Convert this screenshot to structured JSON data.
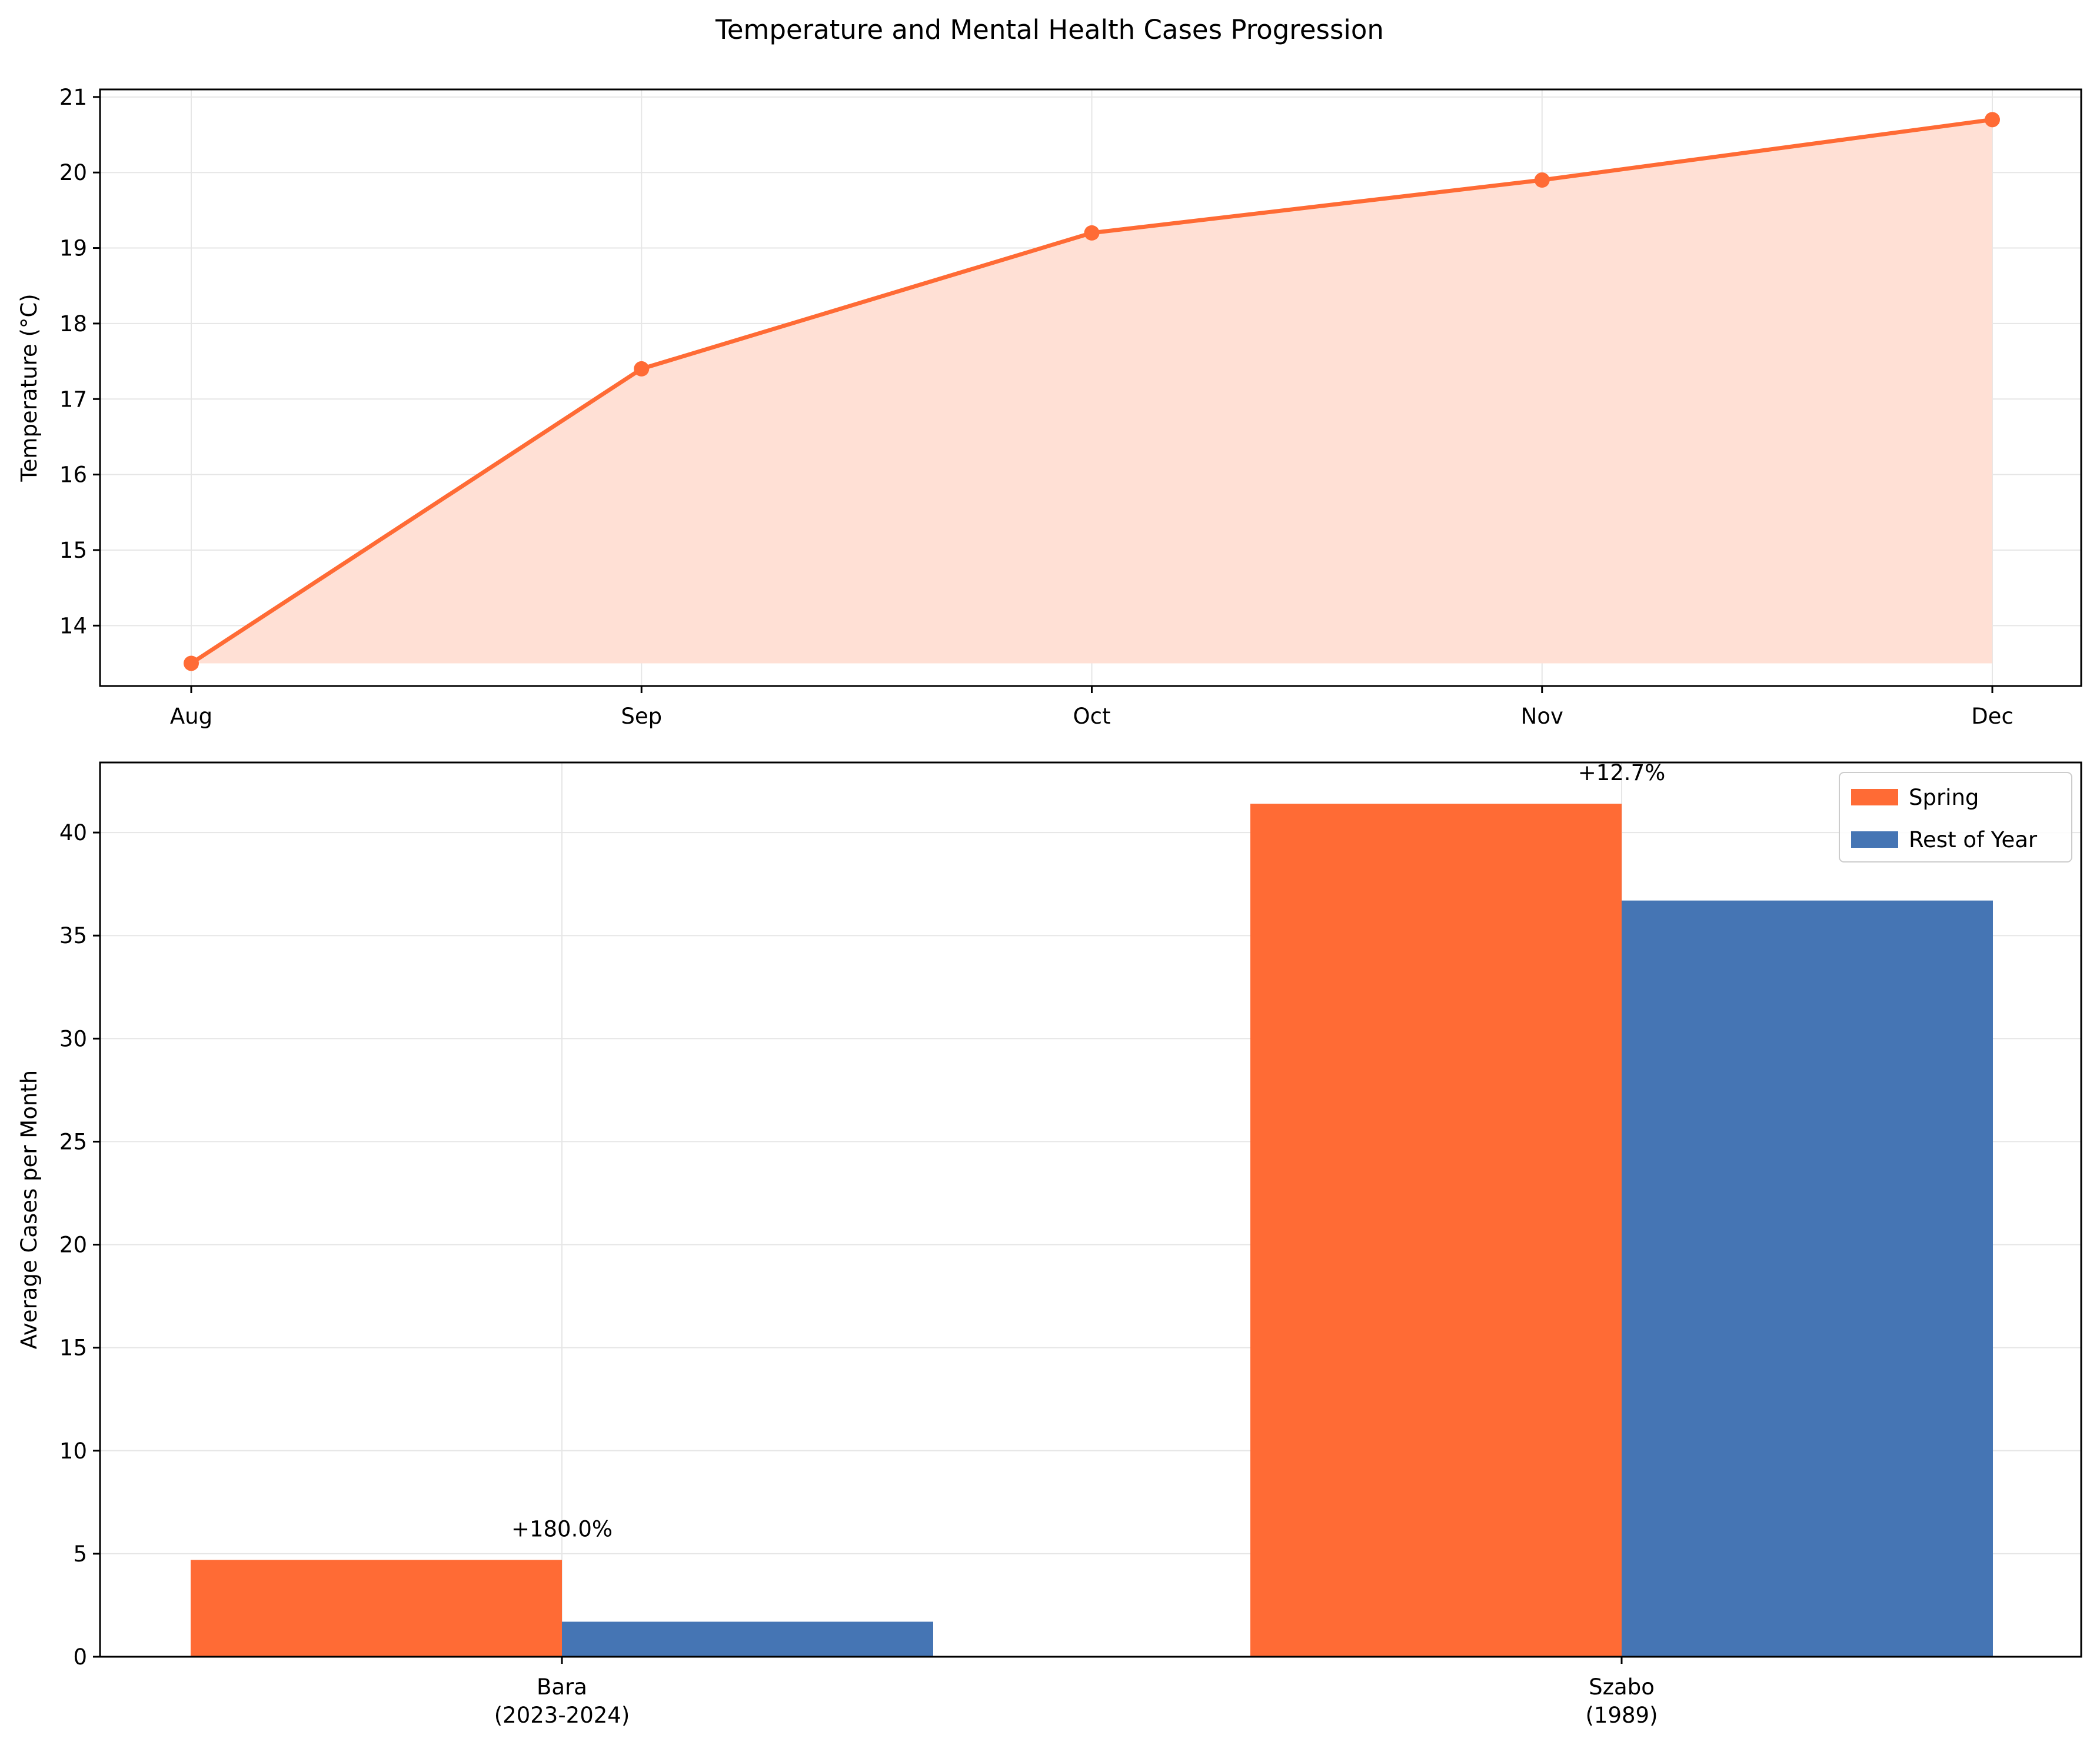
{
  "figure": {
    "title": "Temperature and Mental Health Cases Progression"
  },
  "colors": {
    "orange": "#FF6B35",
    "orange_fill": "#FFE0D5",
    "blue": "#4575B4",
    "grid": "#E6E6E6",
    "axis": "#000000"
  },
  "chart_data": [
    {
      "type": "line",
      "title": "",
      "xlabel": "",
      "ylabel": "Temperature (°C)",
      "categories": [
        "Aug",
        "Sep",
        "Oct",
        "Nov",
        "Dec"
      ],
      "series": [
        {
          "values": [
            13.5,
            17.4,
            19.2,
            19.9,
            20.7
          ],
          "color": "#FF6B35",
          "marker": "circle",
          "filled_area": true
        }
      ],
      "ylim": [
        13.2,
        21.1
      ],
      "yticks": [
        14,
        15,
        16,
        17,
        18,
        19,
        20,
        21
      ],
      "grid": true
    },
    {
      "type": "bar",
      "title": "",
      "xlabel": "",
      "ylabel": "Average Cases per Month",
      "categories": [
        {
          "name": "Bara",
          "sub": "(2023-2024)"
        },
        {
          "name": "Szabo",
          "sub": "(1989)"
        }
      ],
      "series": [
        {
          "name": "Spring",
          "values": [
            4.7,
            41.4
          ],
          "color": "#FF6B35"
        },
        {
          "name": "Rest of Year",
          "values": [
            1.7,
            36.7
          ],
          "color": "#4575B4"
        }
      ],
      "annotations": [
        "+180.0%",
        "+12.7%"
      ],
      "ylim": [
        0,
        43.4
      ],
      "yticks": [
        0,
        5,
        10,
        15,
        20,
        25,
        30,
        35,
        40
      ],
      "legend_position": "top-right",
      "grid": true
    }
  ]
}
